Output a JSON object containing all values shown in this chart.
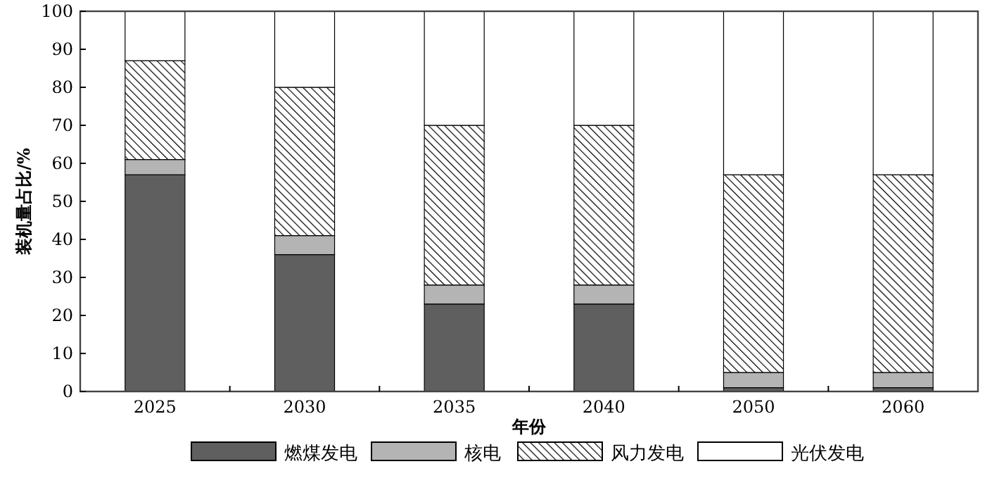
{
  "chart_data": {
    "type": "bar",
    "stacked": true,
    "xlabel": "年份",
    "ylabel": "装机量占比/%",
    "categories": [
      "2025",
      "2030",
      "2035",
      "2040",
      "2050",
      "2060"
    ],
    "series": [
      {
        "name": "燃煤发电",
        "color": "#5f5f5f",
        "values": [
          57,
          36,
          23,
          23,
          1,
          1
        ]
      },
      {
        "name": "核电",
        "color": "#b4b4b4",
        "values": [
          4,
          5,
          5,
          5,
          4,
          4
        ]
      },
      {
        "name": "风力发电",
        "color": "#000000",
        "values": [
          26,
          39,
          42,
          42,
          52,
          52
        ]
      },
      {
        "name": "光伏发电",
        "color": "#ffffff",
        "values": [
          13,
          20,
          30,
          30,
          43,
          43
        ]
      }
    ],
    "ylim": [
      0,
      100
    ],
    "yticks": [
      0,
      10,
      20,
      30,
      40,
      50,
      60,
      70,
      80,
      90,
      100
    ],
    "legend": "bottom",
    "grid": false
  }
}
